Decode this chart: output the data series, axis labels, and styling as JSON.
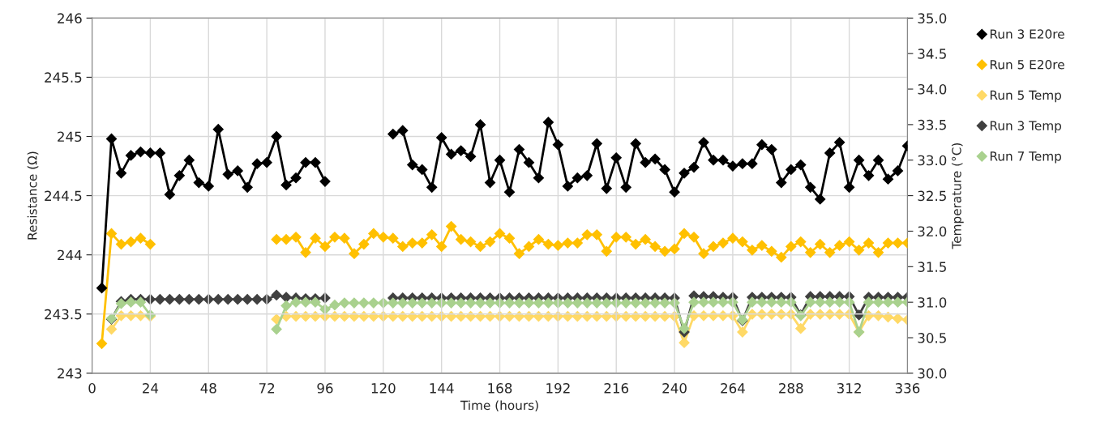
{
  "chart_data": {
    "type": "line",
    "xlabel": "Time (hours)",
    "ylabel": "Resistance (Ω)",
    "y2label": "Temperature (°C)",
    "x": [
      4,
      8,
      12,
      16,
      20,
      24,
      28,
      32,
      36,
      40,
      44,
      48,
      52,
      56,
      60,
      64,
      68,
      72,
      76,
      80,
      84,
      88,
      92,
      96,
      100,
      104,
      108,
      112,
      116,
      120,
      124,
      128,
      132,
      136,
      140,
      144,
      148,
      152,
      156,
      160,
      164,
      168,
      172,
      176,
      180,
      184,
      188,
      192,
      196,
      200,
      204,
      208,
      212,
      216,
      220,
      224,
      228,
      232,
      236,
      240,
      244,
      248,
      252,
      256,
      260,
      264,
      268,
      272,
      276,
      280,
      284,
      288,
      292,
      296,
      300,
      304,
      308,
      312,
      316,
      320,
      324,
      328,
      332,
      336
    ],
    "xlim": [
      0,
      336
    ],
    "xticks": [
      0,
      24,
      48,
      72,
      96,
      120,
      144,
      168,
      192,
      216,
      240,
      264,
      288,
      312,
      336
    ],
    "ylim": [
      243,
      246
    ],
    "yticks": [
      243,
      243.5,
      244,
      244.5,
      245,
      245.5,
      246
    ],
    "y2lim": [
      30,
      35
    ],
    "y2ticks": [
      {
        "value": 30,
        "label": "30.0"
      },
      {
        "value": 30.5,
        "label": "30.5"
      },
      {
        "value": 31,
        "label": "31.0"
      },
      {
        "value": 31.5,
        "label": "31.5"
      },
      {
        "value": 32,
        "label": "32.0"
      },
      {
        "value": 32.5,
        "label": "32.5"
      },
      {
        "value": 33,
        "label": "33.0"
      },
      {
        "value": 33.5,
        "label": "33.5"
      },
      {
        "value": 34,
        "label": "34.0"
      },
      {
        "value": 34.5,
        "label": "34.5"
      },
      {
        "value": 35,
        "label": "35.0"
      }
    ],
    "grid": true,
    "legend": "right",
    "marker": "diamond",
    "line_style": "solid",
    "series": [
      {
        "name": "Run 3 E20re",
        "color": "#000000",
        "values": [
          243.72,
          244.98,
          244.69,
          244.84,
          244.87,
          244.86,
          244.86,
          244.51,
          244.67,
          244.8,
          244.61,
          244.58,
          245.06,
          244.68,
          244.71,
          244.57,
          244.77,
          244.78,
          245.0,
          244.59,
          244.65,
          244.78,
          244.78,
          244.62,
          null,
          null,
          null,
          null,
          null,
          null,
          245.02,
          245.05,
          244.76,
          244.72,
          244.57,
          244.99,
          244.85,
          244.88,
          244.83,
          245.1,
          244.61,
          244.8,
          244.53,
          244.89,
          244.78,
          244.65,
          245.12,
          244.93,
          244.58,
          244.65,
          244.67,
          244.94,
          244.56,
          244.82,
          244.57,
          244.94,
          244.78,
          244.81,
          244.72,
          244.53,
          244.69,
          244.74,
          244.95,
          244.8,
          244.8,
          244.75,
          244.77,
          244.77,
          244.93,
          244.89,
          244.61,
          244.72,
          244.76,
          244.57,
          244.47,
          244.86,
          244.95,
          244.57,
          244.8,
          244.67,
          244.8,
          244.64,
          244.71,
          244.92
        ]
      },
      {
        "name": "Run 5 E20re",
        "color": "#ffc000",
        "values": [
          243.25,
          244.18,
          244.09,
          244.11,
          244.14,
          244.09,
          null,
          null,
          null,
          null,
          null,
          null,
          null,
          null,
          null,
          null,
          null,
          null,
          244.13,
          244.13,
          244.15,
          244.02,
          244.14,
          244.07,
          244.15,
          244.14,
          244.01,
          244.09,
          244.18,
          244.15,
          244.14,
          244.07,
          244.1,
          244.1,
          244.17,
          244.07,
          244.24,
          244.13,
          244.11,
          244.07,
          244.11,
          244.18,
          244.14,
          244.01,
          244.07,
          244.13,
          244.09,
          244.08,
          244.1,
          244.1,
          244.17,
          244.17,
          244.03,
          244.15,
          244.15,
          244.09,
          244.13,
          244.07,
          244.03,
          244.05,
          244.18,
          244.15,
          244.01,
          244.07,
          244.1,
          244.14,
          244.11,
          244.04,
          244.08,
          244.03,
          243.98,
          244.07,
          244.11,
          244.02,
          244.09,
          244.02,
          244.08,
          244.11,
          244.04,
          244.1,
          244.02,
          244.1,
          244.1,
          244.1
        ]
      },
      {
        "name": "Run 5 Temp",
        "color": "#ffd966",
        "axis": "y2",
        "values": [
          null,
          30.62,
          30.81,
          30.81,
          30.81,
          30.8,
          null,
          null,
          null,
          null,
          null,
          null,
          null,
          null,
          null,
          null,
          null,
          null,
          30.76,
          30.8,
          30.8,
          30.8,
          30.8,
          30.8,
          30.8,
          30.8,
          30.8,
          30.8,
          30.8,
          30.8,
          30.8,
          30.8,
          30.8,
          30.8,
          30.8,
          30.8,
          30.8,
          30.8,
          30.8,
          30.8,
          30.8,
          30.8,
          30.8,
          30.8,
          30.8,
          30.8,
          30.8,
          30.8,
          30.8,
          30.8,
          30.8,
          30.8,
          30.8,
          30.8,
          30.8,
          30.8,
          30.8,
          30.8,
          30.8,
          30.8,
          30.43,
          30.81,
          30.81,
          30.81,
          30.81,
          30.81,
          30.58,
          30.83,
          30.83,
          30.83,
          30.83,
          30.83,
          30.63,
          30.83,
          30.83,
          30.83,
          30.83,
          30.83,
          30.58,
          30.81,
          30.81,
          30.79,
          30.77,
          30.75
        ]
      },
      {
        "name": "Run 3 Temp",
        "color": "#404040",
        "axis": "y2",
        "values": [
          null,
          30.76,
          31.01,
          31.04,
          31.04,
          31.04,
          31.04,
          31.04,
          31.04,
          31.04,
          31.04,
          31.04,
          31.04,
          31.04,
          31.04,
          31.04,
          31.04,
          31.04,
          31.1,
          31.07,
          31.06,
          31.05,
          31.05,
          31.06,
          null,
          null,
          null,
          null,
          null,
          null,
          31.06,
          31.06,
          31.06,
          31.06,
          31.06,
          31.06,
          31.06,
          31.06,
          31.06,
          31.06,
          31.06,
          31.06,
          31.06,
          31.06,
          31.06,
          31.06,
          31.06,
          31.06,
          31.06,
          31.06,
          31.06,
          31.06,
          31.06,
          31.06,
          31.06,
          31.06,
          31.06,
          31.06,
          31.06,
          31.06,
          30.58,
          31.09,
          31.08,
          31.08,
          31.07,
          31.07,
          30.74,
          31.07,
          31.07,
          31.07,
          31.07,
          31.07,
          30.82,
          31.08,
          31.08,
          31.08,
          31.08,
          31.08,
          30.82,
          31.07,
          31.07,
          31.07,
          31.07,
          31.07
        ]
      },
      {
        "name": "Run 7 Temp",
        "color": "#a9d18e",
        "axis": "y2",
        "values": [
          null,
          30.77,
          30.98,
          31.0,
          31.0,
          30.82,
          null,
          null,
          null,
          null,
          null,
          null,
          null,
          null,
          null,
          null,
          null,
          null,
          30.62,
          30.95,
          31.0,
          31.0,
          31.0,
          30.9,
          30.96,
          30.99,
          30.99,
          30.99,
          30.99,
          30.99,
          30.99,
          30.99,
          30.99,
          30.99,
          30.99,
          30.99,
          30.99,
          30.99,
          30.99,
          30.99,
          30.99,
          30.99,
          30.99,
          30.99,
          30.99,
          30.99,
          30.99,
          30.99,
          30.99,
          30.99,
          30.99,
          30.99,
          30.99,
          30.99,
          30.99,
          30.99,
          30.99,
          30.99,
          30.99,
          30.99,
          30.63,
          31.0,
          31.0,
          31.0,
          31.0,
          31.0,
          30.75,
          31.0,
          31.0,
          31.0,
          31.0,
          31.0,
          30.81,
          31.0,
          31.0,
          31.0,
          31.0,
          31.0,
          30.58,
          31.0,
          31.0,
          31.0,
          31.0,
          31.0
        ]
      }
    ]
  }
}
